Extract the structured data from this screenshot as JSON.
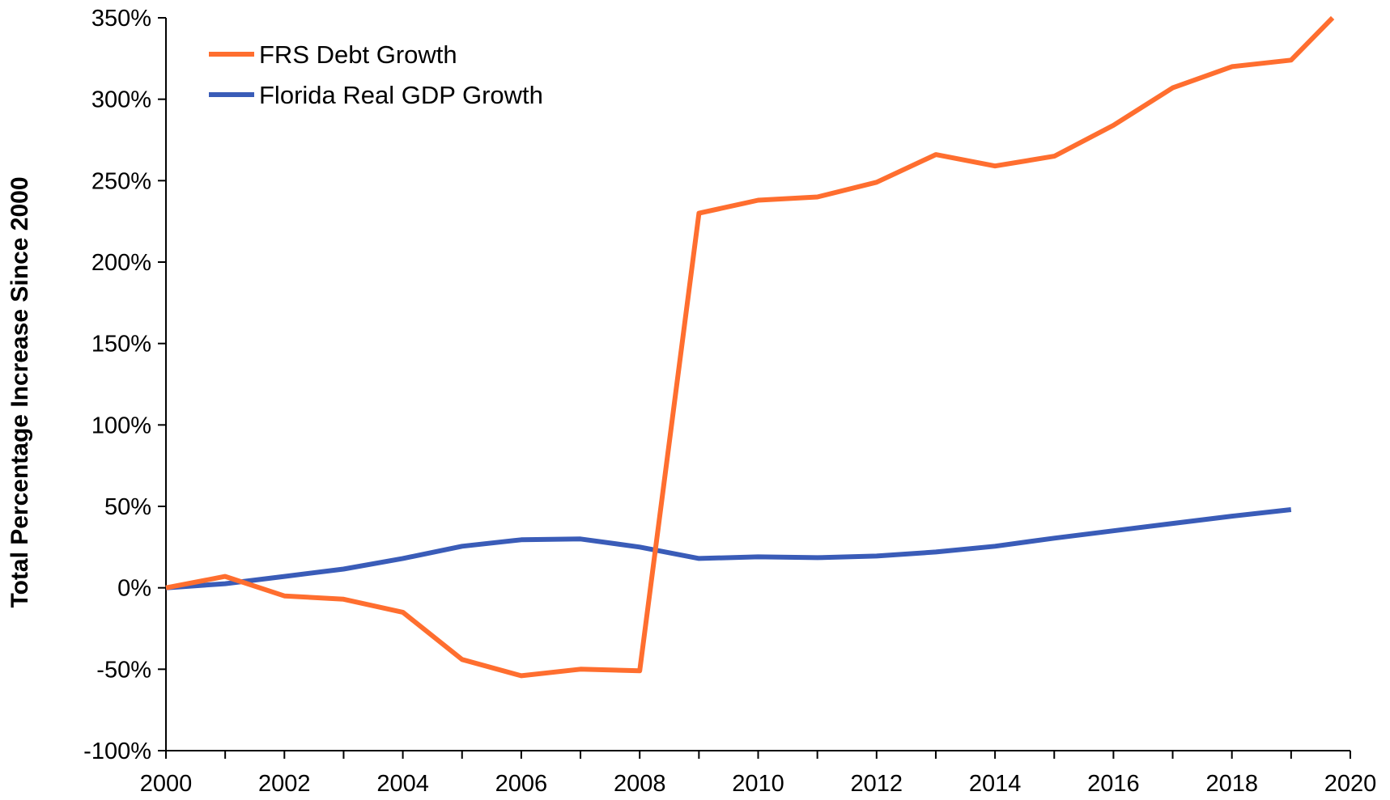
{
  "chart_data": {
    "type": "line",
    "title": "",
    "xlabel": "",
    "ylabel": "Total Percentage Increase Since 2000",
    "x": [
      2000,
      2001,
      2002,
      2003,
      2004,
      2005,
      2006,
      2007,
      2008,
      2009,
      2010,
      2011,
      2012,
      2013,
      2014,
      2015,
      2016,
      2017,
      2018,
      2019
    ],
    "series": [
      {
        "name": "FRS Debt Growth",
        "color": "#FF6E2F",
        "x": [
          2000,
          2001,
          2002,
          2003,
          2004,
          2005,
          2006,
          2007,
          2008,
          2009,
          2010,
          2011,
          2012,
          2013,
          2014,
          2015,
          2016,
          2017,
          2018,
          2019,
          2019.7
        ],
        "values": [
          0,
          7,
          -5,
          -7,
          -15,
          -44,
          -54,
          -50,
          -51,
          230,
          238,
          240,
          249,
          266,
          259,
          265,
          284,
          307,
          320,
          324,
          350
        ]
      },
      {
        "name": "Florida Real GDP Growth",
        "color": "#3A5CB8",
        "x": [
          2000,
          2001,
          2002,
          2003,
          2004,
          2005,
          2006,
          2007,
          2008,
          2009,
          2010,
          2011,
          2012,
          2013,
          2014,
          2015,
          2016,
          2017,
          2018,
          2019
        ],
        "values": [
          0,
          2.5,
          7,
          11.5,
          18,
          25.5,
          29.5,
          30,
          25,
          18,
          19,
          18.5,
          19.5,
          22,
          25.5,
          30.5,
          35,
          39.5,
          44,
          48
        ]
      }
    ],
    "xlim": [
      2000,
      2020
    ],
    "ylim": [
      -100,
      350
    ],
    "x_ticks": [
      "2000",
      "2002",
      "2004",
      "2006",
      "2008",
      "2010",
      "2012",
      "2014",
      "2016",
      "2018",
      "2020"
    ],
    "x_tick_values": [
      2000,
      2002,
      2004,
      2006,
      2008,
      2010,
      2012,
      2014,
      2016,
      2018,
      2020
    ],
    "y_ticks": [
      "-100%",
      "-50%",
      "0%",
      "50%",
      "100%",
      "150%",
      "200%",
      "250%",
      "300%",
      "350%"
    ],
    "y_tick_values": [
      -100,
      -50,
      0,
      50,
      100,
      150,
      200,
      250,
      300,
      350
    ],
    "grid": false,
    "legend_position": "top-left"
  }
}
